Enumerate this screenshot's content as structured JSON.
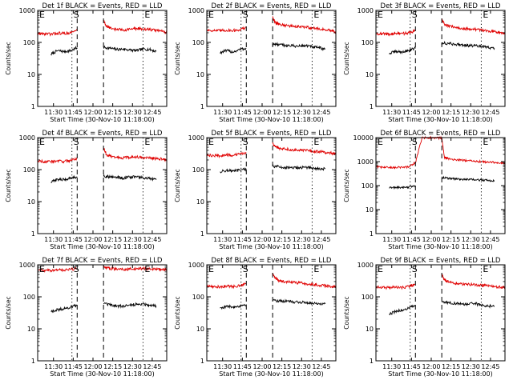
{
  "shared": {
    "xlabel": "Start Time (30-Nov-10 11:18:00)",
    "ylabel": "Counts/sec",
    "xticks": [
      "11:30",
      "11:45",
      "12:00",
      "12:15",
      "12:30",
      "12:45"
    ],
    "xtick_minutes": [
      12,
      27,
      42,
      57,
      72,
      87
    ],
    "xlim_minutes": [
      0,
      98
    ],
    "ylim": [
      1,
      1000
    ],
    "yscale": "log",
    "yticks": [
      "1",
      "10",
      "100",
      "1000"
    ],
    "series_colors": {
      "Events": "#000000",
      "LLD": "#e00000"
    },
    "markers": [
      {
        "label": "E",
        "minute": 0,
        "style": "dotted"
      },
      {
        "label": "S",
        "minute": 26,
        "style": "dotted"
      },
      {
        "label": "",
        "minute": 30,
        "style": "dashed"
      },
      {
        "label": "",
        "minute": 50,
        "style": "dashed"
      },
      {
        "label": "E",
        "minute": 80,
        "style": "dotted"
      }
    ],
    "gap_minutes": [
      30,
      50
    ]
  },
  "chart_data": [
    {
      "type": "line",
      "title": "Det 1f BLACK = Events, RED = LLD",
      "ylim": [
        1,
        1000
      ],
      "yticks": [
        "1",
        "10",
        "100",
        "1000"
      ],
      "series": [
        {
          "name": "Events",
          "x": [
            10,
            15,
            20,
            25,
            30,
            50,
            55,
            60,
            65,
            70,
            75,
            80,
            85,
            90
          ],
          "y": [
            42,
            55,
            52,
            55,
            68,
            70,
            66,
            60,
            62,
            58,
            55,
            62,
            60,
            52
          ]
        },
        {
          "name": "LLD",
          "x": [
            0,
            5,
            10,
            15,
            20,
            25,
            30,
            50,
            52,
            55,
            60,
            65,
            70,
            75,
            80,
            85,
            90,
            95,
            98
          ],
          "y": [
            190,
            185,
            180,
            195,
            190,
            200,
            240,
            500,
            330,
            280,
            255,
            245,
            260,
            270,
            265,
            250,
            240,
            225,
            205
          ]
        }
      ]
    },
    {
      "type": "line",
      "title": "Det 2f BLACK = Events, RED = LLD",
      "ylim": [
        1,
        1000
      ],
      "yticks": [
        "1",
        "10",
        "100",
        "1000"
      ],
      "series": [
        {
          "name": "Events",
          "x": [
            10,
            15,
            20,
            25,
            30,
            50,
            55,
            60,
            65,
            70,
            75,
            80,
            85,
            90
          ],
          "y": [
            48,
            55,
            50,
            60,
            65,
            88,
            85,
            80,
            78,
            76,
            80,
            72,
            68,
            62
          ]
        },
        {
          "name": "LLD",
          "x": [
            0,
            5,
            10,
            15,
            20,
            25,
            30,
            50,
            52,
            55,
            60,
            65,
            70,
            75,
            80,
            85,
            90,
            95,
            98
          ],
          "y": [
            245,
            235,
            230,
            240,
            235,
            250,
            290,
            600,
            420,
            370,
            340,
            320,
            305,
            300,
            285,
            265,
            250,
            230,
            205
          ]
        }
      ]
    },
    {
      "type": "line",
      "title": "Det 3f BLACK = Events, RED = LLD",
      "ylim": [
        1,
        1000
      ],
      "yticks": [
        "1",
        "10",
        "100",
        "1000"
      ],
      "series": [
        {
          "name": "Events",
          "x": [
            10,
            15,
            20,
            25,
            30,
            50,
            55,
            60,
            65,
            70,
            75,
            80,
            85,
            90
          ],
          "y": [
            45,
            52,
            50,
            56,
            65,
            96,
            92,
            88,
            85,
            80,
            78,
            74,
            70,
            65
          ]
        },
        {
          "name": "LLD",
          "x": [
            0,
            5,
            10,
            15,
            20,
            25,
            30,
            50,
            52,
            55,
            60,
            65,
            70,
            75,
            80,
            85,
            90,
            95,
            98
          ],
          "y": [
            190,
            185,
            180,
            192,
            188,
            200,
            230,
            500,
            380,
            320,
            295,
            280,
            270,
            255,
            245,
            232,
            220,
            208,
            195
          ]
        }
      ]
    },
    {
      "type": "line",
      "title": "Det 4f BLACK = Events, RED = LLD",
      "ylim": [
        1,
        1000
      ],
      "yticks": [
        "1",
        "10",
        "100",
        "1000"
      ],
      "series": [
        {
          "name": "Events",
          "x": [
            10,
            15,
            20,
            25,
            30,
            50,
            55,
            60,
            65,
            70,
            75,
            80,
            85,
            90
          ],
          "y": [
            40,
            50,
            48,
            55,
            60,
            62,
            60,
            58,
            54,
            58,
            60,
            55,
            52,
            48
          ]
        },
        {
          "name": "LLD",
          "x": [
            0,
            5,
            10,
            15,
            20,
            25,
            30,
            50,
            52,
            55,
            60,
            65,
            70,
            75,
            80,
            85,
            90,
            95,
            98
          ],
          "y": [
            190,
            180,
            175,
            185,
            180,
            195,
            225,
            480,
            300,
            260,
            240,
            235,
            240,
            245,
            238,
            230,
            220,
            210,
            200
          ]
        }
      ]
    },
    {
      "type": "line",
      "title": "Det 5f BLACK = Events, RED = LLD",
      "ylim": [
        1,
        1000
      ],
      "yticks": [
        "1",
        "10",
        "100",
        "1000"
      ],
      "series": [
        {
          "name": "Events",
          "x": [
            10,
            15,
            20,
            25,
            30,
            50,
            55,
            60,
            65,
            70,
            75,
            80,
            85,
            90
          ],
          "y": [
            85,
            95,
            90,
            95,
            102,
            130,
            122,
            115,
            112,
            115,
            118,
            110,
            108,
            105
          ]
        },
        {
          "name": "LLD",
          "x": [
            0,
            5,
            10,
            15,
            20,
            25,
            30,
            50,
            52,
            55,
            60,
            65,
            70,
            75,
            80,
            85,
            90,
            95,
            98
          ],
          "y": [
            280,
            275,
            270,
            285,
            280,
            300,
            340,
            700,
            520,
            470,
            440,
            420,
            410,
            395,
            380,
            365,
            345,
            325,
            305
          ]
        }
      ]
    },
    {
      "type": "line",
      "title": "Det 6f BLACK = Events, RED = LLD",
      "ylim": [
        1,
        10000
      ],
      "yticks": [
        "1",
        "10",
        "100",
        "1000",
        "10000"
      ],
      "series": [
        {
          "name": "Events",
          "x": [
            10,
            15,
            20,
            25,
            30,
            50,
            55,
            60,
            65,
            70,
            75,
            80,
            85,
            90
          ],
          "y": [
            80,
            85,
            82,
            88,
            95,
            220,
            200,
            190,
            185,
            180,
            175,
            170,
            165,
            160
          ]
        },
        {
          "name": "LLD",
          "x": [
            0,
            5,
            10,
            15,
            20,
            25,
            30,
            35,
            40,
            45,
            50,
            52,
            55,
            60,
            65,
            70,
            75,
            80,
            85,
            90,
            95,
            98
          ],
          "y": [
            600,
            580,
            560,
            570,
            580,
            600,
            900,
            9800,
            9900,
            9900,
            9600,
            1500,
            1350,
            1200,
            1150,
            1100,
            1050,
            1000,
            950,
            900,
            880,
            860
          ]
        }
      ]
    },
    {
      "type": "line",
      "title": "Det 7f BLACK = Events, RED = LLD",
      "ylim": [
        1,
        1000
      ],
      "yticks": [
        "1",
        "10",
        "100",
        "1000"
      ],
      "series": [
        {
          "name": "Events",
          "x": [
            10,
            15,
            20,
            25,
            30,
            50,
            55,
            60,
            65,
            70,
            75,
            80,
            85,
            90
          ],
          "y": [
            35,
            40,
            42,
            48,
            55,
            60,
            55,
            52,
            50,
            56,
            58,
            60,
            55,
            52
          ]
        },
        {
          "name": "LLD",
          "x": [
            0,
            5,
            10,
            15,
            20,
            25,
            30,
            50,
            52,
            55,
            60,
            65,
            70,
            75,
            80,
            85,
            90,
            95,
            98
          ],
          "y": [
            700,
            680,
            650,
            700,
            690,
            720,
            760,
            900,
            800,
            760,
            740,
            720,
            730,
            750,
            760,
            740,
            730,
            720,
            700
          ]
        }
      ]
    },
    {
      "type": "line",
      "title": "Det 8f BLACK = Events, RED = LLD",
      "ylim": [
        1,
        1000
      ],
      "yticks": [
        "1",
        "10",
        "100",
        "1000"
      ],
      "series": [
        {
          "name": "Events",
          "x": [
            10,
            15,
            20,
            25,
            30,
            50,
            55,
            60,
            65,
            70,
            75,
            80,
            85,
            90
          ],
          "y": [
            45,
            50,
            48,
            52,
            58,
            78,
            75,
            72,
            70,
            68,
            66,
            64,
            62,
            60
          ]
        },
        {
          "name": "LLD",
          "x": [
            0,
            5,
            10,
            15,
            20,
            25,
            30,
            50,
            52,
            55,
            60,
            65,
            70,
            75,
            80,
            85,
            90,
            95,
            98
          ],
          "y": [
            220,
            210,
            205,
            215,
            210,
            225,
            260,
            550,
            380,
            320,
            295,
            280,
            270,
            260,
            245,
            232,
            220,
            210,
            200
          ]
        }
      ]
    },
    {
      "type": "line",
      "title": "Det 9f BLACK = Events, RED = LLD",
      "ylim": [
        1,
        1000
      ],
      "yticks": [
        "1",
        "10",
        "100",
        "1000"
      ],
      "series": [
        {
          "name": "Events",
          "x": [
            10,
            15,
            20,
            25,
            30,
            50,
            55,
            60,
            65,
            70,
            75,
            80,
            85,
            90
          ],
          "y": [
            28,
            35,
            38,
            45,
            52,
            70,
            66,
            62,
            60,
            58,
            62,
            55,
            52,
            50
          ]
        },
        {
          "name": "LLD",
          "x": [
            0,
            5,
            10,
            15,
            20,
            25,
            30,
            50,
            52,
            55,
            60,
            65,
            70,
            75,
            80,
            85,
            90,
            95,
            98
          ],
          "y": [
            205,
            195,
            190,
            200,
            195,
            210,
            245,
            500,
            340,
            290,
            265,
            255,
            248,
            242,
            230,
            220,
            210,
            200,
            192
          ]
        }
      ]
    }
  ]
}
